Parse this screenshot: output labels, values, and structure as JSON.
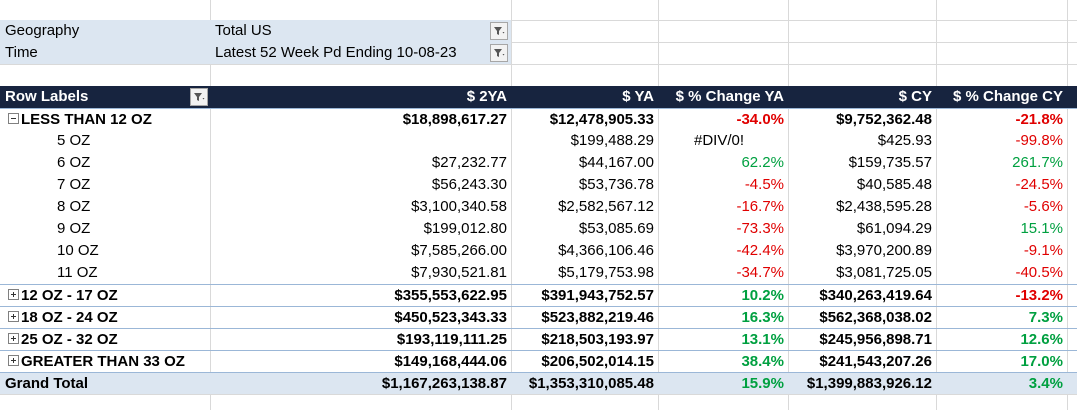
{
  "filters": [
    {
      "label": "Geography",
      "value": "Total US"
    },
    {
      "label": "Time",
      "value": "Latest 52 Week Pd Ending 10-08-23"
    }
  ],
  "pivot": {
    "headers": {
      "row_labels": "Row Labels",
      "c2ya": "$ 2YA",
      "ya": "$ YA",
      "chg_ya": "$ % Change YA",
      "cy": "$ CY",
      "chg_cy": "$ % Change CY"
    },
    "rows": [
      {
        "type": "group",
        "expanded": true,
        "label": "LESS THAN 12 OZ",
        "c2ya": "$18,898,617.27",
        "ya": "$12,478,905.33",
        "chg_ya": "-34.0%",
        "chg_ya_sign": "neg",
        "cy": "$9,752,362.48",
        "chg_cy": "-21.8%",
        "chg_cy_sign": "neg"
      },
      {
        "type": "child",
        "label": "5 OZ",
        "c2ya": "",
        "ya": "$199,488.29",
        "chg_ya": "#DIV/0!",
        "chg_ya_sign": "err",
        "cy": "$425.93",
        "chg_cy": "-99.8%",
        "chg_cy_sign": "neg"
      },
      {
        "type": "child",
        "label": "6 OZ",
        "c2ya": "$27,232.77",
        "ya": "$44,167.00",
        "chg_ya": "62.2%",
        "chg_ya_sign": "pos",
        "cy": "$159,735.57",
        "chg_cy": "261.7%",
        "chg_cy_sign": "pos"
      },
      {
        "type": "child",
        "label": "7 OZ",
        "c2ya": "$56,243.30",
        "ya": "$53,736.78",
        "chg_ya": "-4.5%",
        "chg_ya_sign": "neg",
        "cy": "$40,585.48",
        "chg_cy": "-24.5%",
        "chg_cy_sign": "neg"
      },
      {
        "type": "child",
        "label": "8 OZ",
        "c2ya": "$3,100,340.58",
        "ya": "$2,582,567.12",
        "chg_ya": "-16.7%",
        "chg_ya_sign": "neg",
        "cy": "$2,438,595.28",
        "chg_cy": "-5.6%",
        "chg_cy_sign": "neg"
      },
      {
        "type": "child",
        "label": "9 OZ",
        "c2ya": "$199,012.80",
        "ya": "$53,085.69",
        "chg_ya": "-73.3%",
        "chg_ya_sign": "neg",
        "cy": "$61,094.29",
        "chg_cy": "15.1%",
        "chg_cy_sign": "pos"
      },
      {
        "type": "child",
        "label": "10 OZ",
        "c2ya": "$7,585,266.00",
        "ya": "$4,366,106.46",
        "chg_ya": "-42.4%",
        "chg_ya_sign": "neg",
        "cy": "$3,970,200.89",
        "chg_cy": "-9.1%",
        "chg_cy_sign": "neg"
      },
      {
        "type": "child",
        "label": "11 OZ",
        "c2ya": "$7,930,521.81",
        "ya": "$5,179,753.98",
        "chg_ya": "-34.7%",
        "chg_ya_sign": "neg",
        "cy": "$3,081,725.05",
        "chg_cy": "-40.5%",
        "chg_cy_sign": "neg"
      },
      {
        "type": "group",
        "expanded": false,
        "label": "12 OZ - 17 OZ",
        "c2ya": "$355,553,622.95",
        "ya": "$391,943,752.57",
        "chg_ya": "10.2%",
        "chg_ya_sign": "pos",
        "cy": "$340,263,419.64",
        "chg_cy": "-13.2%",
        "chg_cy_sign": "neg"
      },
      {
        "type": "group",
        "expanded": false,
        "label": "18 OZ - 24 OZ",
        "c2ya": "$450,523,343.33",
        "ya": "$523,882,219.46",
        "chg_ya": "16.3%",
        "chg_ya_sign": "pos",
        "cy": "$562,368,038.02",
        "chg_cy": "7.3%",
        "chg_cy_sign": "pos"
      },
      {
        "type": "group",
        "expanded": false,
        "label": "25 OZ - 32 OZ",
        "c2ya": "$193,119,111.25",
        "ya": "$218,503,193.97",
        "chg_ya": "13.1%",
        "chg_ya_sign": "pos",
        "cy": "$245,956,898.71",
        "chg_cy": "12.6%",
        "chg_cy_sign": "pos"
      },
      {
        "type": "group",
        "expanded": false,
        "label": "GREATER THAN 33 OZ",
        "c2ya": "$149,168,444.06",
        "ya": "$206,502,014.15",
        "chg_ya": "38.4%",
        "chg_ya_sign": "pos",
        "cy": "$241,543,207.26",
        "chg_cy": "17.0%",
        "chg_cy_sign": "pos"
      },
      {
        "type": "grand",
        "label": "Grand Total",
        "c2ya": "$1,167,263,138.87",
        "ya": "$1,353,310,085.48",
        "chg_ya": "15.9%",
        "chg_ya_sign": "pos",
        "cy": "$1,399,883,926.12",
        "chg_cy": "3.4%",
        "chg_cy_sign": "pos"
      }
    ]
  },
  "colors": {
    "header_bg": "#17243f",
    "filter_bg": "#dce6f1",
    "negative": "#e00000",
    "positive": "#00a040"
  },
  "icons": {
    "filter": "filter-funnel-icon",
    "expand": "plus-box-icon",
    "collapse": "minus-box-icon"
  }
}
